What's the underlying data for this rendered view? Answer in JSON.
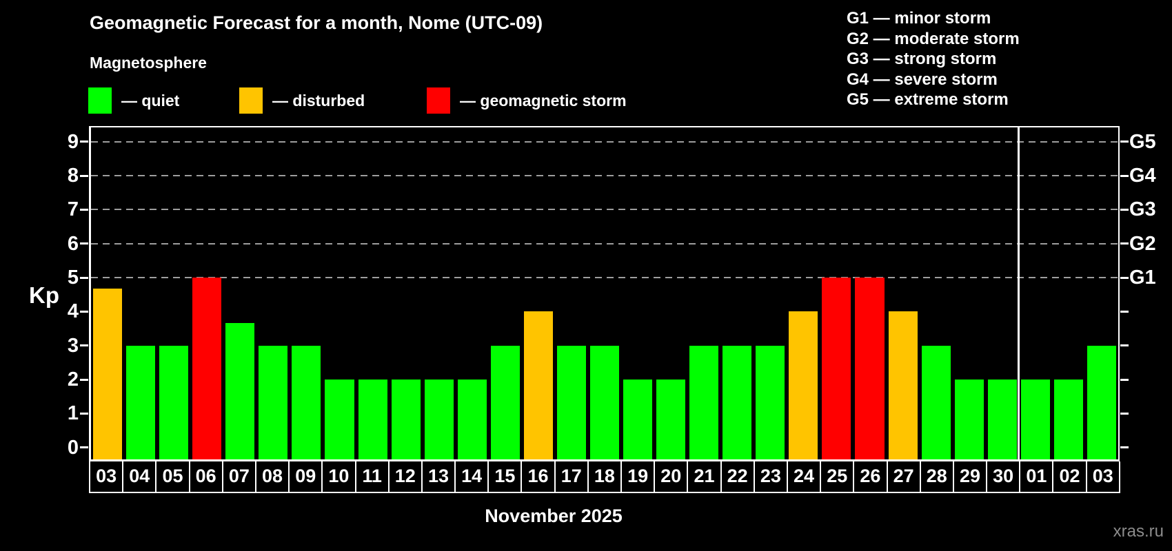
{
  "header": {
    "title": "Geomagnetic Forecast for a month, Nome (UTC-09)",
    "subtitle": "Magnetosphere"
  },
  "legend": {
    "quiet": {
      "label": "— quiet",
      "color": "#00ff00"
    },
    "disturbed": {
      "label": "— disturbed",
      "color": "#ffc400"
    },
    "storm": {
      "label": "— geomagnetic storm",
      "color": "#ff0000"
    }
  },
  "g_legend": {
    "lines": [
      "G1 — minor storm",
      "G2 — moderate storm",
      "G3 — strong storm",
      "G4 — severe storm",
      "G5 — extreme storm"
    ]
  },
  "axis": {
    "ylabel": "Kp",
    "xlabel": "November 2025"
  },
  "watermark": "xras.ru",
  "chart_data": {
    "type": "bar",
    "title": "Geomagnetic Forecast for a month, Nome (UTC-09)",
    "subtitle": "Magnetosphere",
    "ylabel": "Kp",
    "xlabel": "November 2025",
    "ylim": [
      -0.35,
      9.42
    ],
    "yticks": [
      0,
      1,
      2,
      3,
      4,
      5,
      6,
      7,
      8,
      9
    ],
    "gridline_values": [
      5,
      6,
      7,
      8,
      9
    ],
    "grid_color": "#9e9e9e",
    "right_axis_labels": [
      {
        "value": 5,
        "label": "G1"
      },
      {
        "value": 6,
        "label": "G2"
      },
      {
        "value": 7,
        "label": "G3"
      },
      {
        "value": 8,
        "label": "G4"
      },
      {
        "value": 9,
        "label": "G5"
      }
    ],
    "categories": [
      "03",
      "04",
      "05",
      "06",
      "07",
      "08",
      "09",
      "10",
      "11",
      "12",
      "13",
      "14",
      "15",
      "16",
      "17",
      "18",
      "19",
      "20",
      "21",
      "22",
      "23",
      "24",
      "25",
      "26",
      "27",
      "28",
      "29",
      "30",
      "01",
      "02",
      "03"
    ],
    "values": [
      4.67,
      3,
      3,
      5,
      3.67,
      3,
      3,
      2,
      2,
      2,
      2,
      2,
      3,
      4,
      3,
      3,
      2,
      2,
      3,
      3,
      3,
      4,
      5,
      5,
      4,
      3,
      2,
      2,
      2,
      2,
      3
    ],
    "statuses": [
      "disturbed",
      "quiet",
      "quiet",
      "storm",
      "quiet",
      "quiet",
      "quiet",
      "quiet",
      "quiet",
      "quiet",
      "quiet",
      "quiet",
      "quiet",
      "disturbed",
      "quiet",
      "quiet",
      "quiet",
      "quiet",
      "quiet",
      "quiet",
      "quiet",
      "disturbed",
      "storm",
      "storm",
      "disturbed",
      "quiet",
      "quiet",
      "quiet",
      "quiet",
      "quiet",
      "quiet"
    ],
    "colors": {
      "quiet": "#00ff00",
      "disturbed": "#ffc400",
      "storm": "#ff0000"
    },
    "month_separator_index": 28,
    "legend_position": "top-left"
  }
}
